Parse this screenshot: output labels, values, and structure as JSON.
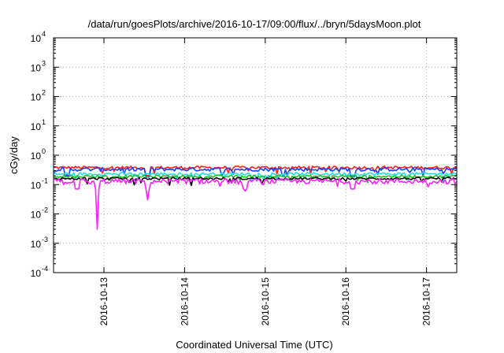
{
  "chart_data": {
    "type": "line",
    "title": "/data/run/goesPlots/archive/2016-10-17/09:00/flux/../bryn/5daysMoon.plot",
    "xlabel": "Coordinated Universal Time (UTC)",
    "ylabel": "cGy/day",
    "yscale": "log",
    "ylim": [
      0.0001,
      10000
    ],
    "xlim": [
      "2016-10-12 09:00",
      "2016-10-17 09:00"
    ],
    "grid": true,
    "legend": "none",
    "y_ticks": [
      {
        "value": 0.0001,
        "base": "10",
        "exp": "-4"
      },
      {
        "value": 0.001,
        "base": "10",
        "exp": "-3"
      },
      {
        "value": 0.01,
        "base": "10",
        "exp": "-2"
      },
      {
        "value": 0.1,
        "base": "10",
        "exp": "-1"
      },
      {
        "value": 1,
        "base": "10",
        "exp": "0"
      },
      {
        "value": 10,
        "base": "10",
        "exp": "1"
      },
      {
        "value": 100,
        "base": "10",
        "exp": "2"
      },
      {
        "value": 1000,
        "base": "10",
        "exp": "3"
      },
      {
        "value": 10000,
        "base": "10",
        "exp": "4"
      }
    ],
    "x_ticks": [
      {
        "value": "2016-10-13 00:00",
        "label": "2016-10-13"
      },
      {
        "value": "2016-10-14 00:00",
        "label": "2016-10-14"
      },
      {
        "value": "2016-10-15 00:00",
        "label": "2016-10-15"
      },
      {
        "value": "2016-10-16 00:00",
        "label": "2016-10-16"
      },
      {
        "value": "2016-10-17 00:00",
        "label": "2016-10-17"
      }
    ],
    "series": [
      {
        "color": "#ff2020",
        "level": 0.38,
        "spread": 0.1,
        "dips": [
          [
            "2016-10-13 13:00",
            0.2
          ]
        ]
      },
      {
        "color": "#1a3cff",
        "level": 0.33,
        "spread": 0.12,
        "dips": [
          [
            "2016-10-12 13:00",
            0.22
          ],
          [
            "2016-10-13 13:00",
            0.18
          ],
          [
            "2016-10-16 02:00",
            0.2
          ]
        ]
      },
      {
        "color": "#20e0e0",
        "level": 0.23,
        "spread": 0.1,
        "dips": []
      },
      {
        "color": "#20c020",
        "level": 0.19,
        "spread": 0.08,
        "dips": []
      },
      {
        "color": "#000000",
        "level": 0.16,
        "spread": 0.08,
        "dips": []
      },
      {
        "color": "#ff20ff",
        "level": 0.13,
        "spread": 0.18,
        "dips": [
          [
            "2016-10-12 16:00",
            0.07
          ],
          [
            "2016-10-12 22:00",
            0.003
          ],
          [
            "2016-10-13 13:00",
            0.03
          ],
          [
            "2016-10-14 18:00",
            0.06
          ],
          [
            "2016-10-16 02:00",
            0.07
          ]
        ]
      }
    ]
  }
}
